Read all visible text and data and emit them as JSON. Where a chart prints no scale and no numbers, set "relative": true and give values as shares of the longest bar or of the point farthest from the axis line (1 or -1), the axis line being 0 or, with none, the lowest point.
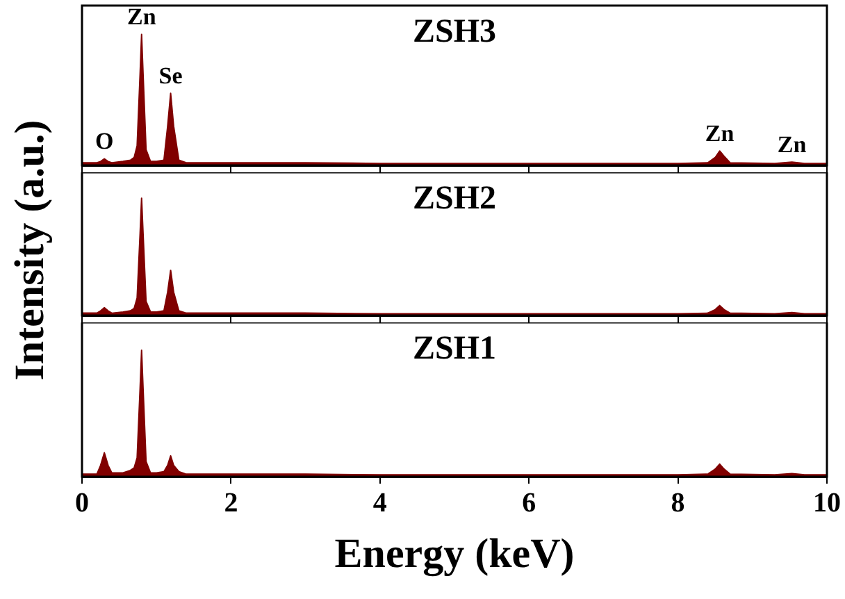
{
  "chart_data": [
    {
      "type": "area",
      "title": "ZSH3",
      "relative": true,
      "tick_labels": false,
      "xlim": [
        0,
        10
      ],
      "xticks": [
        0,
        2,
        4,
        6,
        8,
        10
      ],
      "x": [
        0,
        0.2,
        0.25,
        0.3,
        0.35,
        0.4,
        0.55,
        0.65,
        0.7,
        0.74,
        0.78,
        0.8,
        0.82,
        0.86,
        0.92,
        1.0,
        1.1,
        1.15,
        1.19,
        1.23,
        1.3,
        1.4,
        2,
        3,
        4,
        5,
        6,
        7,
        8,
        8.4,
        8.5,
        8.56,
        8.62,
        8.7,
        9.3,
        9.53,
        9.7,
        10
      ],
      "series": [
        {
          "color": "#800000",
          "values": [
            0.02,
            0.02,
            0.03,
            0.05,
            0.03,
            0.02,
            0.03,
            0.04,
            0.06,
            0.15,
            0.7,
            1,
            0.7,
            0.12,
            0.03,
            0.03,
            0.04,
            0.3,
            0.55,
            0.3,
            0.04,
            0.02,
            0.02,
            0.02,
            0.015,
            0.015,
            0.015,
            0.015,
            0.015,
            0.02,
            0.06,
            0.11,
            0.07,
            0.02,
            0.015,
            0.025,
            0.015,
            0.015
          ]
        }
      ],
      "annotations": [
        {
          "text": "O",
          "x": 0.3,
          "y": 0.05
        },
        {
          "text": "Zn",
          "x": 0.8,
          "y": 1
        },
        {
          "text": "Se",
          "x": 1.19,
          "y": 0.55
        },
        {
          "text": "Zn",
          "x": 8.56,
          "y": 0.11
        },
        {
          "text": "Zn",
          "x": 9.53,
          "y": 0.025
        }
      ]
    },
    {
      "type": "area",
      "title": "ZSH2",
      "relative": true,
      "tick_labels": false,
      "ylabel": "Intensity (a.u.)",
      "xlim": [
        0,
        10
      ],
      "xticks": [
        0,
        2,
        4,
        6,
        8,
        10
      ],
      "x": [
        0,
        0.2,
        0.25,
        0.3,
        0.35,
        0.4,
        0.55,
        0.65,
        0.7,
        0.74,
        0.78,
        0.8,
        0.82,
        0.86,
        0.92,
        1.0,
        1.1,
        1.15,
        1.19,
        1.23,
        1.3,
        1.4,
        2,
        3,
        4,
        5,
        6,
        7,
        8,
        8.4,
        8.5,
        8.56,
        8.62,
        8.7,
        9.3,
        9.53,
        9.7,
        10
      ],
      "series": [
        {
          "color": "#800000",
          "values": [
            0.02,
            0.02,
            0.04,
            0.066,
            0.04,
            0.02,
            0.03,
            0.04,
            0.06,
            0.15,
            0.7,
            1,
            0.7,
            0.12,
            0.03,
            0.03,
            0.04,
            0.2,
            0.385,
            0.2,
            0.04,
            0.02,
            0.02,
            0.02,
            0.015,
            0.015,
            0.015,
            0.015,
            0.015,
            0.02,
            0.05,
            0.085,
            0.05,
            0.02,
            0.015,
            0.025,
            0.015,
            0.015
          ]
        }
      ]
    },
    {
      "type": "area",
      "title": "ZSH1",
      "relative": true,
      "tick_labels": "x",
      "xlabel": "Energy (keV)",
      "xlim": [
        0,
        10
      ],
      "xticks": [
        0,
        2,
        4,
        6,
        8,
        10
      ],
      "x": [
        0,
        0.2,
        0.25,
        0.3,
        0.35,
        0.4,
        0.55,
        0.65,
        0.7,
        0.74,
        0.78,
        0.8,
        0.82,
        0.86,
        0.92,
        1.0,
        1.1,
        1.15,
        1.19,
        1.23,
        1.3,
        1.4,
        2,
        3,
        4,
        5,
        6,
        7,
        8,
        8.4,
        8.5,
        8.56,
        8.62,
        8.7,
        9.3,
        9.53,
        9.7,
        10
      ],
      "series": [
        {
          "color": "#800000",
          "values": [
            0.02,
            0.02,
            0.09,
            0.19,
            0.09,
            0.03,
            0.03,
            0.05,
            0.07,
            0.15,
            0.7,
            1,
            0.7,
            0.12,
            0.03,
            0.03,
            0.04,
            0.09,
            0.165,
            0.09,
            0.04,
            0.02,
            0.02,
            0.02,
            0.015,
            0.015,
            0.015,
            0.015,
            0.015,
            0.02,
            0.06,
            0.1,
            0.06,
            0.02,
            0.015,
            0.025,
            0.015,
            0.015
          ]
        }
      ]
    }
  ]
}
